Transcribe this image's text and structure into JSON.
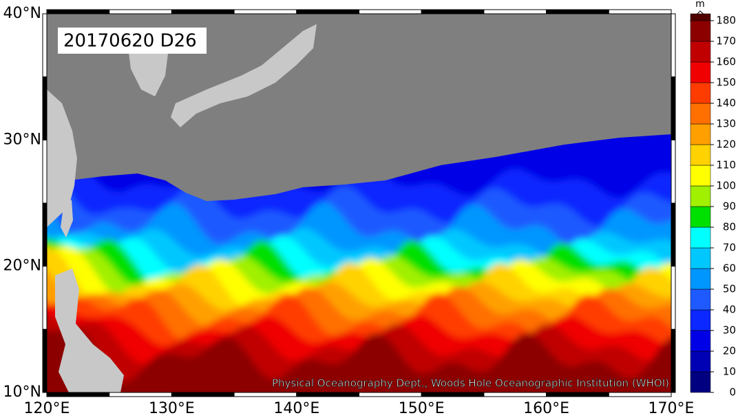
{
  "title": "20170620 D26",
  "credit": "Physical Oceanography Dept., Woods Hole Oceanographic Institution (WHOI)",
  "lat_labels": [
    "40°N",
    "30°N",
    "20°N",
    "10°N"
  ],
  "lon_labels": [
    "120°E",
    "130°E",
    "140°E",
    "150°E",
    "160°E",
    "170°E"
  ],
  "colorbar": {
    "unit": "m",
    "ticks": [
      0,
      10,
      20,
      30,
      40,
      50,
      60,
      70,
      80,
      90,
      100,
      110,
      120,
      130,
      140,
      150,
      160,
      170,
      180
    ],
    "colors": [
      "#000080",
      "#0000b4",
      "#0000e6",
      "#0a28ff",
      "#1e5aff",
      "#0096ff",
      "#00c8ff",
      "#00ffff",
      "#00e000",
      "#a0f000",
      "#ffff00",
      "#ffd200",
      "#ffa000",
      "#ff7000",
      "#ff3c00",
      "#f00000",
      "#c00000",
      "#8c0000",
      "#500000"
    ]
  }
}
